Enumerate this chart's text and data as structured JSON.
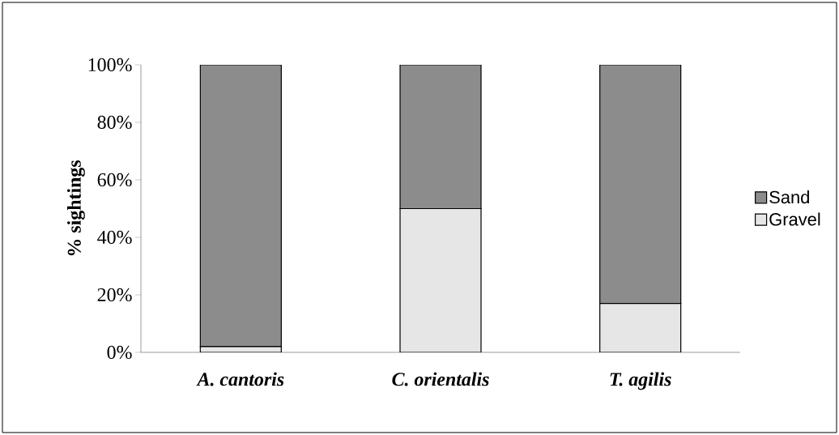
{
  "chart_data": {
    "type": "bar",
    "stacked": true,
    "ylabel": "% sightings",
    "categories": [
      "A. cantoris",
      "C. orientalis",
      "T. agilis"
    ],
    "series": [
      {
        "name": "Gravel",
        "color": "#e6e6e6",
        "values": [
          2,
          50,
          17
        ]
      },
      {
        "name": "Sand",
        "color": "#8c8c8c",
        "values": [
          98,
          50,
          83
        ]
      }
    ],
    "ylim": [
      0,
      100
    ],
    "yticks": [
      {
        "value": 0,
        "label": "0%"
      },
      {
        "value": 20,
        "label": "20%"
      },
      {
        "value": 40,
        "label": "40%"
      },
      {
        "value": 60,
        "label": "60%"
      },
      {
        "value": 80,
        "label": "80%"
      },
      {
        "value": 100,
        "label": "100%"
      }
    ],
    "grid": false,
    "legend": "right"
  }
}
